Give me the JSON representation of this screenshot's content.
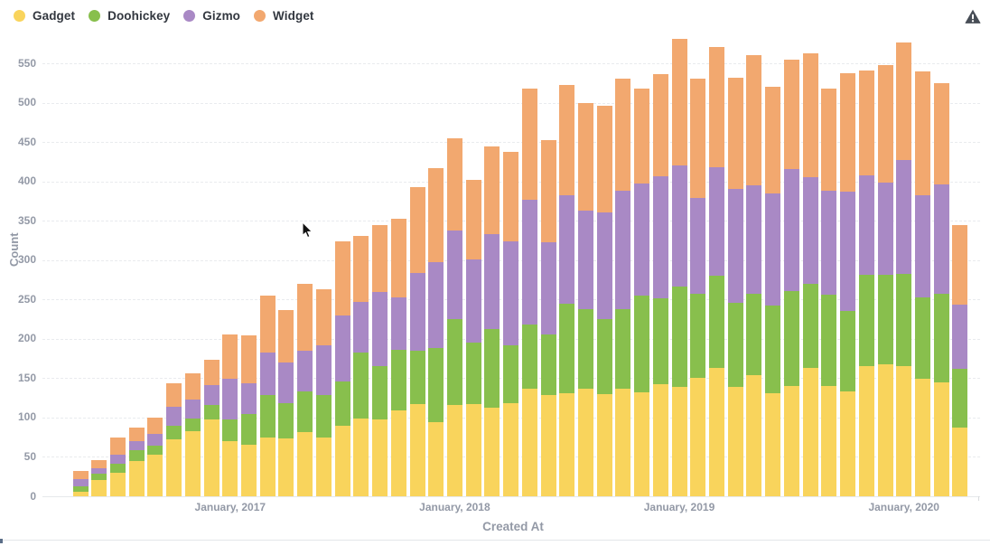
{
  "legend_items": [
    "Gadget",
    "Doohickey",
    "Gizmo",
    "Widget"
  ],
  "icons": {
    "top_right": "warning-triangle-icon",
    "pointer": "mouse-cursor-arrow"
  },
  "colors": {
    "gadget": "#F9D45C",
    "doohickey": "#88BF4D",
    "gizmo": "#A989C5",
    "widget": "#F2A86F",
    "axis_text": "#9399a6",
    "legend_text": "#32373f",
    "gridline": "#e9ebee"
  },
  "chart_data": {
    "type": "bar",
    "stacked": true,
    "title": "",
    "xlabel": "Created At",
    "ylabel": "Count",
    "ylim": [
      0,
      550
    ],
    "y_ticks": [
      0,
      50,
      100,
      150,
      200,
      250,
      300,
      350,
      400,
      450,
      500,
      550
    ],
    "grid": "dashed-horizontal",
    "legend_position": "top-left",
    "n_bars": 48,
    "categories": [
      "2016-05",
      "2016-06",
      "2016-07",
      "2016-08",
      "2016-09",
      "2016-10",
      "2016-11",
      "2016-12",
      "2017-01",
      "2017-02",
      "2017-03",
      "2017-04",
      "2017-05",
      "2017-06",
      "2017-07",
      "2017-08",
      "2017-09",
      "2017-10",
      "2017-11",
      "2017-12",
      "2018-01",
      "2018-02",
      "2018-03",
      "2018-04",
      "2018-05",
      "2018-06",
      "2018-07",
      "2018-08",
      "2018-09",
      "2018-10",
      "2018-11",
      "2018-12",
      "2019-01",
      "2019-02",
      "2019-03",
      "2019-04",
      "2019-05",
      "2019-06",
      "2019-07",
      "2019-08",
      "2019-09",
      "2019-10",
      "2019-11",
      "2019-12",
      "2020-01",
      "2020-02",
      "2020-03",
      "2020-04"
    ],
    "x_tick_labels": [
      "January, 2017",
      "January, 2018",
      "January, 2019",
      "January, 2020"
    ],
    "x_tick_bar_index": [
      8,
      20,
      32,
      44
    ],
    "series": [
      {
        "name": "Gadget",
        "color": "#F9D45C",
        "values": [
          6,
          21,
          30,
          45,
          53,
          72,
          83,
          98,
          70,
          66,
          75,
          74,
          81,
          75,
          89,
          99,
          98,
          109,
          117,
          94,
          116,
          117,
          112,
          118,
          137,
          129,
          131,
          136,
          130,
          137,
          132,
          142,
          139,
          150,
          163,
          139,
          154,
          131,
          140,
          163,
          140,
          133,
          165,
          168,
          165,
          149,
          145,
          87
        ]
      },
      {
        "name": "Doohickey",
        "color": "#88BF4D",
        "values": [
          7,
          8,
          11,
          13,
          11,
          18,
          16,
          18,
          27,
          39,
          54,
          44,
          52,
          54,
          57,
          83,
          67,
          77,
          68,
          94,
          109,
          78,
          100,
          74,
          81,
          77,
          113,
          101,
          95,
          101,
          123,
          109,
          127,
          107,
          117,
          107,
          103,
          111,
          121,
          107,
          116,
          103,
          116,
          113,
          117,
          103,
          112,
          75
        ]
      },
      {
        "name": "Gizmo",
        "color": "#A989C5",
        "values": [
          9,
          7,
          12,
          12,
          15,
          24,
          24,
          25,
          52,
          39,
          54,
          52,
          52,
          63,
          84,
          65,
          94,
          67,
          99,
          109,
          113,
          106,
          121,
          132,
          159,
          117,
          138,
          126,
          136,
          150,
          142,
          155,
          154,
          122,
          138,
          144,
          138,
          142,
          155,
          135,
          132,
          151,
          127,
          117,
          145,
          130,
          139,
          81
        ]
      },
      {
        "name": "Widget",
        "color": "#F2A86F",
        "values": [
          10,
          10,
          22,
          17,
          21,
          30,
          33,
          33,
          57,
          61,
          72,
          67,
          85,
          71,
          94,
          84,
          85,
          99,
          109,
          120,
          117,
          101,
          111,
          114,
          141,
          130,
          140,
          136,
          135,
          142,
          121,
          130,
          161,
          151,
          153,
          142,
          165,
          136,
          139,
          158,
          130,
          151,
          133,
          150,
          150,
          158,
          129,
          101
        ]
      }
    ]
  }
}
